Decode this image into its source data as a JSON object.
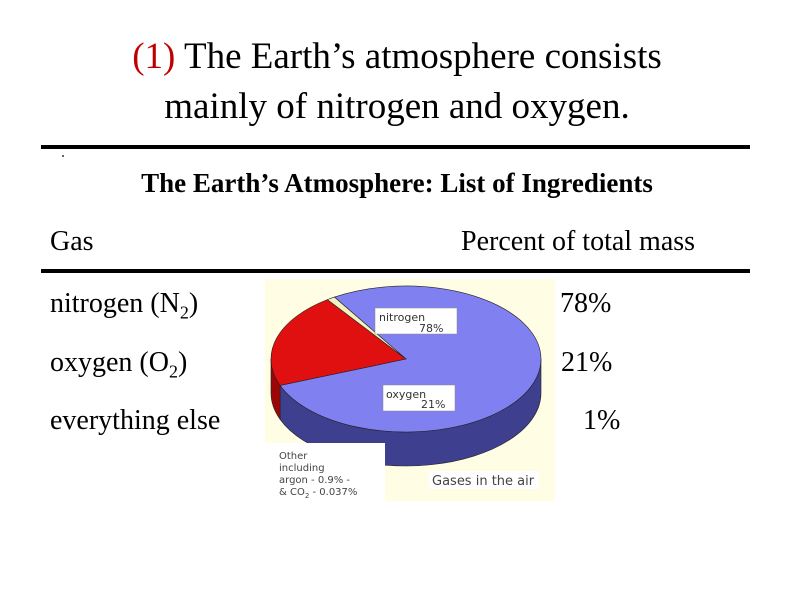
{
  "slide": {
    "title_number": "(1)",
    "title_line1": "The Earth’s atmosphere consists",
    "title_line2": "mainly of nitrogen and oxygen.",
    "table_title": "The Earth’s Atmosphere: List of Ingredients",
    "col_gas": "Gas",
    "col_percent": "Percent of total mass"
  },
  "table": {
    "rows": [
      {
        "gas": "nitrogen (N",
        "sub": "2",
        "tail": ")",
        "percent": "78%"
      },
      {
        "gas": "oxygen (O",
        "sub": "2",
        "tail": ")",
        "percent": "21%"
      },
      {
        "gas": "everything else",
        "sub": "",
        "tail": "",
        "percent": "1%"
      }
    ]
  },
  "chart_data": {
    "type": "pie",
    "title": "Gases in the air",
    "slices": [
      {
        "label": "nitrogen",
        "value": 78,
        "value_label": "78%",
        "color": "#8080f0"
      },
      {
        "label": "oxygen",
        "value": 21,
        "value_label": "21%",
        "color": "#e01010"
      },
      {
        "label": "Other including argon - 0.9% - & CO2 - 0.037%",
        "value": 1,
        "value_label": "",
        "color": "#f4f2c0"
      }
    ],
    "other_label_lines": [
      "Other",
      "including",
      "argon - 0.9% -",
      "& CO",
      "2",
      " - 0.037%"
    ]
  },
  "colors": {
    "title_number": "#c00000",
    "chart_background": "#fffde4",
    "nitrogen_side": "#3f3f8f",
    "oxygen_side": "#9c0606",
    "other_side": "#8a8a70"
  }
}
